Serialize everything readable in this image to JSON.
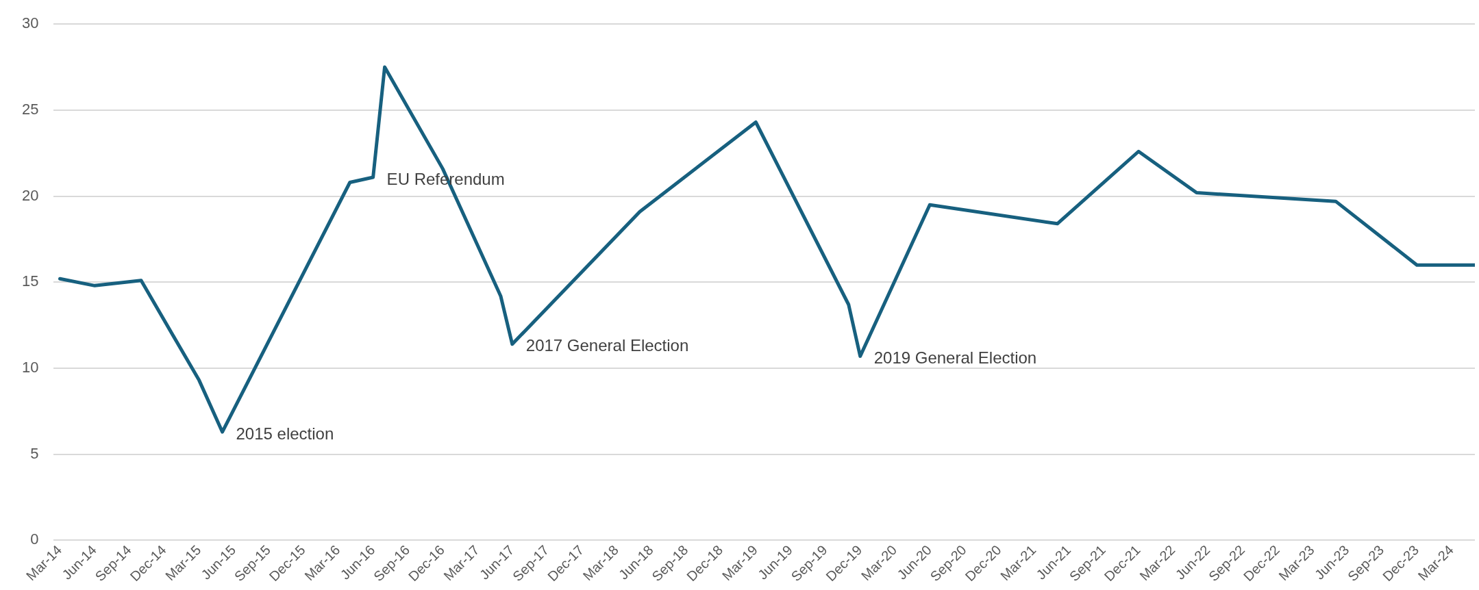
{
  "chart_data": {
    "type": "line",
    "x": [
      "2014-03",
      "2014-06",
      "2014-10",
      "2015-03",
      "2015-05",
      "2016-04",
      "2016-06",
      "2016-07",
      "2016-12",
      "2017-05",
      "2017-06",
      "2018-05",
      "2019-03",
      "2019-11",
      "2019-12",
      "2020-06",
      "2021-05",
      "2021-12",
      "2022-05",
      "2023-05",
      "2023-12",
      "2024-05"
    ],
    "values": [
      15.2,
      14.8,
      15.1,
      9.3,
      6.3,
      20.8,
      21.1,
      27.5,
      21.6,
      14.2,
      11.4,
      19.1,
      24.3,
      13.7,
      10.7,
      19.5,
      18.4,
      22.6,
      20.2,
      19.7,
      16.0,
      16.0
    ],
    "color": "#17607f",
    "marker": "none",
    "line_style": "solid",
    "grid": "y",
    "xlim": [
      "2014-02-15",
      "2024-05"
    ],
    "xticks": [
      {
        "value": "2014-03",
        "label": "Mar-14"
      },
      {
        "value": "2014-06",
        "label": "Jun-14"
      },
      {
        "value": "2014-09",
        "label": "Sep-14"
      },
      {
        "value": "2014-12",
        "label": "Dec-14"
      },
      {
        "value": "2015-03",
        "label": "Mar-15"
      },
      {
        "value": "2015-06",
        "label": "Jun-15"
      },
      {
        "value": "2015-09",
        "label": "Sep-15"
      },
      {
        "value": "2015-12",
        "label": "Dec-15"
      },
      {
        "value": "2016-03",
        "label": "Mar-16"
      },
      {
        "value": "2016-06",
        "label": "Jun-16"
      },
      {
        "value": "2016-09",
        "label": "Sep-16"
      },
      {
        "value": "2016-12",
        "label": "Dec-16"
      },
      {
        "value": "2017-03",
        "label": "Mar-17"
      },
      {
        "value": "2017-06",
        "label": "Jun-17"
      },
      {
        "value": "2017-09",
        "label": "Sep-17"
      },
      {
        "value": "2017-12",
        "label": "Dec-17"
      },
      {
        "value": "2018-03",
        "label": "Mar-18"
      },
      {
        "value": "2018-06",
        "label": "Jun-18"
      },
      {
        "value": "2018-09",
        "label": "Sep-18"
      },
      {
        "value": "2018-12",
        "label": "Dec-18"
      },
      {
        "value": "2019-03",
        "label": "Mar-19"
      },
      {
        "value": "2019-06",
        "label": "Jun-19"
      },
      {
        "value": "2019-09",
        "label": "Sep-19"
      },
      {
        "value": "2019-12",
        "label": "Dec-19"
      },
      {
        "value": "2020-03",
        "label": "Mar-20"
      },
      {
        "value": "2020-06",
        "label": "Jun-20"
      },
      {
        "value": "2020-09",
        "label": "Sep-20"
      },
      {
        "value": "2020-12",
        "label": "Dec-20"
      },
      {
        "value": "2021-03",
        "label": "Mar-21"
      },
      {
        "value": "2021-06",
        "label": "Jun-21"
      },
      {
        "value": "2021-09",
        "label": "Sep-21"
      },
      {
        "value": "2021-12",
        "label": "Dec-21"
      },
      {
        "value": "2022-03",
        "label": "Mar-22"
      },
      {
        "value": "2022-06",
        "label": "Jun-22"
      },
      {
        "value": "2022-09",
        "label": "Sep-22"
      },
      {
        "value": "2022-12",
        "label": "Dec-22"
      },
      {
        "value": "2023-03",
        "label": "Mar-23"
      },
      {
        "value": "2023-06",
        "label": "Jun-23"
      },
      {
        "value": "2023-09",
        "label": "Sep-23"
      },
      {
        "value": "2023-12",
        "label": "Dec-23"
      },
      {
        "value": "2024-03",
        "label": "Mar-24"
      }
    ],
    "ylim": [
      0,
      30
    ],
    "yticks": [
      0,
      5,
      10,
      15,
      20,
      25,
      30
    ],
    "annotations": [
      {
        "text": "2015 election",
        "x": "2015-05",
        "y": 6.3
      },
      {
        "text": "EU Referendum",
        "x": "2016-06",
        "y": 21.1
      },
      {
        "text": "2017 General Election",
        "x": "2017-06",
        "y": 11.4
      },
      {
        "text": "2019 General Election",
        "x": "2019-12",
        "y": 10.7
      }
    ]
  }
}
